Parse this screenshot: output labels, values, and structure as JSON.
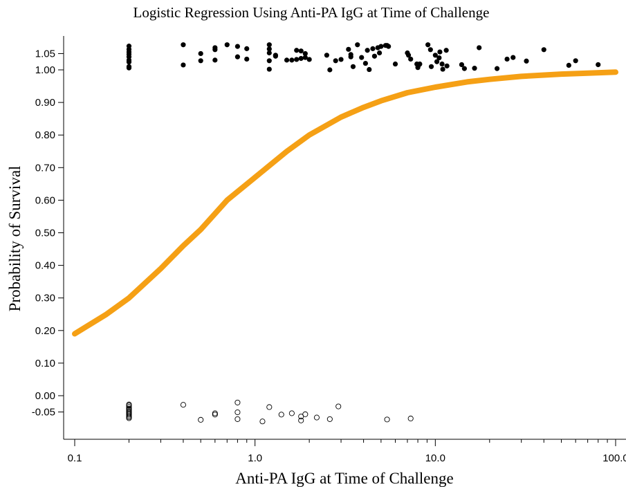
{
  "chart_data": {
    "type": "scatter",
    "title": "Logistic Regression Using Anti-PA IgG at Time of Challenge",
    "xlabel": "Anti-PA IgG at Time of Challenge",
    "ylabel": "Probability of Survival",
    "x_scale": "log",
    "xlim": [
      0.1,
      110
    ],
    "ylim": [
      -0.065,
      1.05
    ],
    "x_ticks": [
      0.1,
      1.0,
      10.0,
      100.0
    ],
    "x_tick_labels": [
      "0.1",
      "1.0",
      "10.0",
      "100.0"
    ],
    "y_ticks": [
      -0.05,
      0.0,
      0.1,
      0.2,
      0.3,
      0.4,
      0.5,
      0.6,
      0.7,
      0.8,
      0.9,
      1.0,
      1.05
    ],
    "y_tick_labels": [
      "-0.05",
      "0.00",
      "0.10",
      "0.20",
      "0.30",
      "0.40",
      "0.50",
      "0.60",
      "0.70",
      "0.80",
      "0.90",
      "1.00",
      "1.05"
    ],
    "grid": false,
    "colors": {
      "curve": "#f5a015",
      "survived": "#000000",
      "died": "#000000"
    },
    "series": [
      {
        "type": "scatter-filled",
        "x": [
          0.2,
          0.2,
          0.2,
          0.2,
          0.2,
          0.2,
          0.2,
          0.2,
          0.2,
          0.4,
          0.4,
          0.5,
          0.5,
          0.6,
          0.6,
          0.6,
          0.7,
          0.8,
          0.8,
          0.9,
          0.9,
          1.2,
          1.2,
          1.2,
          1.2,
          1.2,
          1.3,
          1.3,
          1.5,
          1.6,
          1.7,
          1.7,
          1.8,
          1.8,
          1.9,
          1.9,
          2.0,
          2.5,
          2.6,
          2.8,
          3.0,
          3.3,
          3.4,
          3.4,
          3.5,
          3.7,
          3.9,
          4.1,
          4.2,
          4.3,
          4.5,
          4.6,
          4.8,
          4.9,
          5.0,
          5.3,
          5.4,
          5.5,
          6.0,
          7.0,
          7.1,
          7.3,
          7.9,
          8.0,
          8.1,
          8.2,
          9.1,
          9.4,
          9.5,
          10.0,
          10.2,
          10.5,
          10.6,
          10.9,
          11.0,
          11.5,
          11.6,
          14.0,
          14.5,
          16.5,
          17.5,
          22.0,
          25.0,
          27.0,
          32.0,
          40.0,
          55.0,
          60.0,
          80.0
        ],
        "y": [
          1.073,
          1.063,
          1.055,
          1.048,
          1.04,
          1.03,
          1.024,
          1.01,
          1.006,
          1.077,
          1.015,
          1.05,
          1.028,
          1.068,
          1.062,
          1.03,
          1.077,
          1.072,
          1.04,
          1.065,
          1.033,
          1.077,
          1.064,
          1.052,
          1.028,
          1.002,
          1.045,
          1.042,
          1.03,
          1.03,
          1.06,
          1.032,
          1.058,
          1.035,
          1.05,
          1.038,
          1.032,
          1.045,
          1.0,
          1.028,
          1.032,
          1.063,
          1.047,
          1.04,
          1.01,
          1.077,
          1.038,
          1.02,
          1.06,
          1.001,
          1.065,
          1.042,
          1.068,
          1.052,
          1.072,
          1.075,
          1.075,
          1.072,
          1.018,
          1.052,
          1.045,
          1.033,
          1.018,
          1.007,
          1.015,
          1.018,
          1.077,
          1.062,
          1.01,
          1.045,
          1.025,
          1.037,
          1.055,
          1.018,
          1.002,
          1.06,
          1.012,
          1.016,
          1.004,
          1.005,
          1.068,
          1.004,
          1.033,
          1.038,
          1.027,
          1.062,
          1.014,
          1.028,
          1.016
        ]
      },
      {
        "type": "scatter-open",
        "x": [
          0.2,
          0.2,
          0.2,
          0.2,
          0.2,
          0.2,
          0.2,
          0.2,
          0.2,
          0.2,
          0.2,
          0.2,
          0.4,
          0.5,
          0.6,
          0.6,
          0.8,
          0.8,
          0.8,
          1.1,
          1.2,
          1.4,
          1.6,
          1.8,
          1.8,
          1.9,
          2.2,
          2.6,
          2.9,
          5.4,
          7.3
        ],
        "y": [
          -0.027,
          -0.03,
          -0.035,
          -0.04,
          -0.043,
          -0.047,
          -0.051,
          -0.054,
          -0.058,
          -0.062,
          -0.066,
          -0.069,
          -0.028,
          -0.074,
          -0.054,
          -0.058,
          -0.021,
          -0.051,
          -0.072,
          -0.079,
          -0.035,
          -0.058,
          -0.054,
          -0.064,
          -0.076,
          -0.057,
          -0.067,
          -0.072,
          -0.033,
          -0.073,
          -0.07
        ]
      },
      {
        "type": "logistic-curve",
        "x": [
          0.1,
          0.15,
          0.2,
          0.3,
          0.4,
          0.5,
          0.7,
          1.0,
          1.5,
          2.0,
          3.0,
          4.0,
          5.0,
          7.0,
          10.0,
          15.0,
          20.0,
          30.0,
          50.0,
          70.0,
          100.0
        ],
        "y": [
          0.19,
          0.25,
          0.3,
          0.39,
          0.46,
          0.51,
          0.6,
          0.67,
          0.75,
          0.8,
          0.855,
          0.885,
          0.905,
          0.93,
          0.947,
          0.963,
          0.971,
          0.98,
          0.987,
          0.99,
          0.993
        ]
      }
    ]
  }
}
